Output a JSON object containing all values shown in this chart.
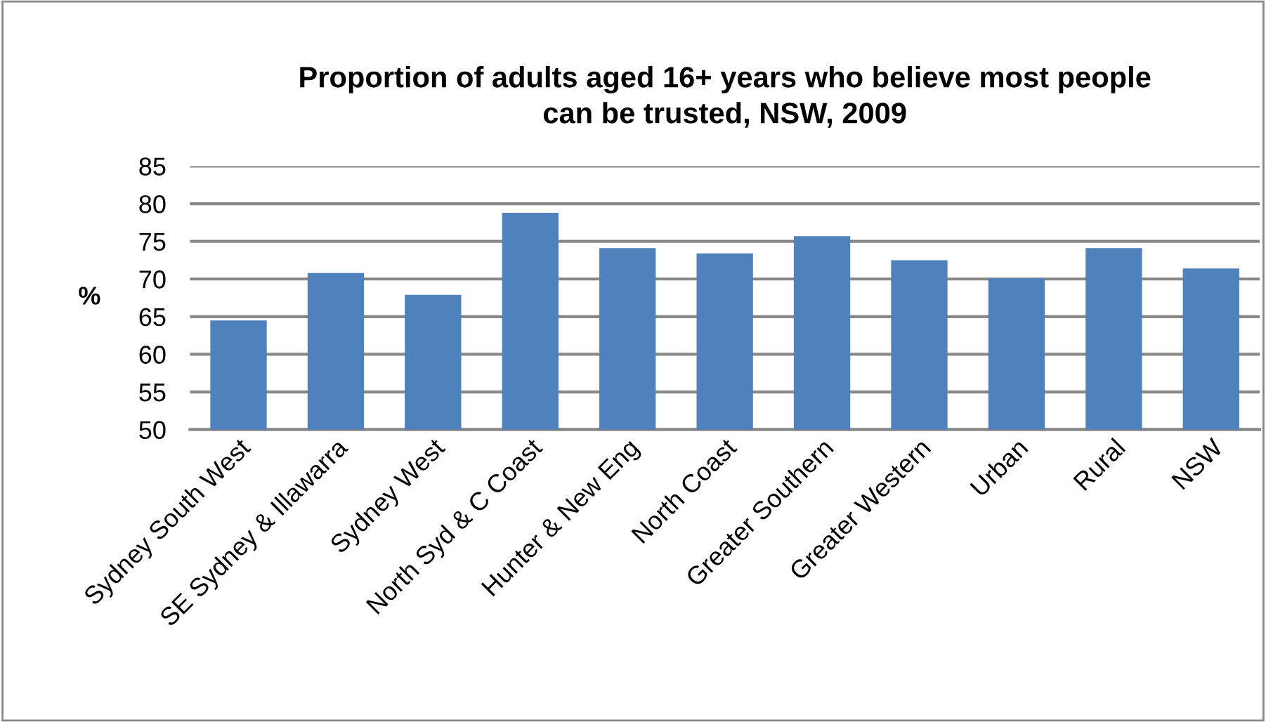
{
  "chart_data": {
    "type": "bar",
    "title": "Proportion of adults aged 16+ years who believe most people\ncan be trusted, NSW, 2009",
    "ylabel": "%",
    "categories": [
      "Sydney South West",
      "SE Sydney & Illawarra",
      "Sydney West",
      "North Syd & C Coast",
      "Hunter & New Eng",
      "North Coast",
      "Greater Southern",
      "Greater Western",
      "Urban",
      "Rural",
      "NSW"
    ],
    "values": [
      64.5,
      70.8,
      67.9,
      78.8,
      74.1,
      73.4,
      75.7,
      72.5,
      70.1,
      74.1,
      71.4
    ],
    "color": "#4f81bd",
    "ylim": [
      50,
      85
    ],
    "yticks": [
      50,
      55,
      60,
      65,
      70,
      75,
      80,
      85
    ],
    "grid": "y",
    "legend": false
  }
}
